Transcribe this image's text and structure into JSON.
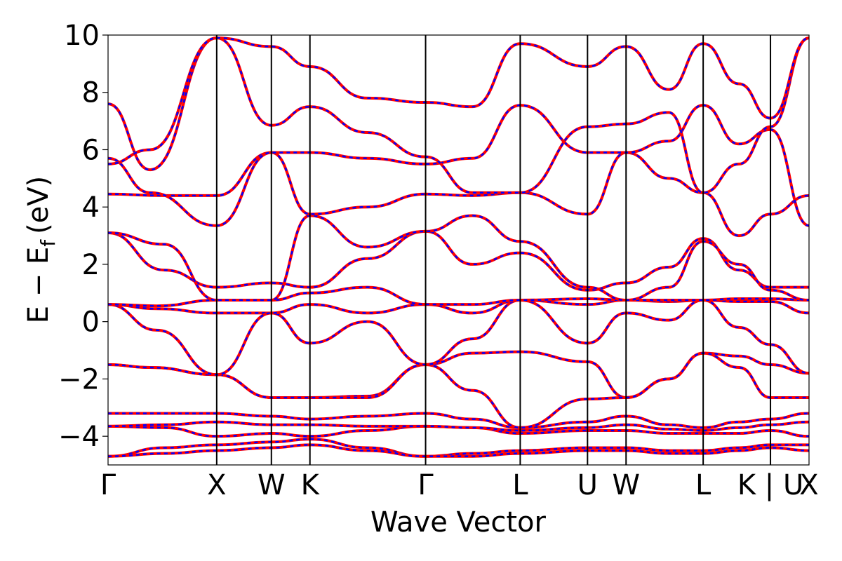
{
  "chart_data": {
    "type": "line",
    "xlabel": "Wave Vector",
    "ylabel": "E − E",
    "ylabel_subscript": "f",
    "ylabel_unit": "(eV)",
    "ylim": [
      -5,
      10
    ],
    "yticks": [
      {
        "value": 10,
        "label": "10"
      },
      {
        "value": 8,
        "label": "8"
      },
      {
        "value": 6,
        "label": "6"
      },
      {
        "value": 4,
        "label": "4"
      },
      {
        "value": 2,
        "label": "2"
      },
      {
        "value": 0,
        "label": "0"
      },
      {
        "value": -2,
        "label": "−2"
      },
      {
        "value": -4,
        "label": "−4"
      }
    ],
    "xlim": [
      0,
      1
    ],
    "high_symmetry_points": [
      {
        "label": "Γ",
        "pos": 0.0
      },
      {
        "label": "X",
        "pos": 0.155
      },
      {
        "label": "W",
        "pos": 0.233
      },
      {
        "label": "K",
        "pos": 0.288
      },
      {
        "label": "Γ",
        "pos": 0.453
      },
      {
        "label": "L",
        "pos": 0.588
      },
      {
        "label": "U",
        "pos": 0.684
      },
      {
        "label": "W",
        "pos": 0.739
      },
      {
        "label": "L",
        "pos": 0.849
      },
      {
        "label": "K | U",
        "pos": 0.945
      },
      {
        "label": "X",
        "pos": 1.0
      }
    ],
    "grid": false,
    "legend": "none",
    "series_colors": {
      "primary": "#ff0000",
      "overlay": "#0000ff"
    },
    "series": [
      {
        "values": [
          [
            0,
            -4.7
          ],
          [
            0.08,
            -4.4
          ],
          [
            0.155,
            -4.3
          ],
          [
            0.233,
            -4.2
          ],
          [
            0.288,
            -4.1
          ],
          [
            0.37,
            -4.4
          ],
          [
            0.453,
            -4.7
          ],
          [
            0.52,
            -4.6
          ],
          [
            0.588,
            -4.5
          ],
          [
            0.684,
            -4.4
          ],
          [
            0.739,
            -4.4
          ],
          [
            0.8,
            -4.5
          ],
          [
            0.849,
            -4.5
          ],
          [
            0.9,
            -4.4
          ],
          [
            0.945,
            -4.3
          ],
          [
            1.0,
            -4.3
          ]
        ]
      },
      {
        "values": [
          [
            0,
            -4.7
          ],
          [
            0.08,
            -4.6
          ],
          [
            0.155,
            -4.5
          ],
          [
            0.233,
            -4.4
          ],
          [
            0.288,
            -4.3
          ],
          [
            0.37,
            -4.5
          ],
          [
            0.453,
            -4.7
          ],
          [
            0.52,
            -4.7
          ],
          [
            0.588,
            -4.6
          ],
          [
            0.684,
            -4.5
          ],
          [
            0.739,
            -4.5
          ],
          [
            0.8,
            -4.6
          ],
          [
            0.849,
            -4.6
          ],
          [
            0.9,
            -4.5
          ],
          [
            0.945,
            -4.4
          ],
          [
            1.0,
            -4.5
          ]
        ]
      },
      {
        "values": [
          [
            0,
            -3.65
          ],
          [
            0.08,
            -3.7
          ],
          [
            0.155,
            -4.0
          ],
          [
            0.233,
            -3.9
          ],
          [
            0.288,
            -4.0
          ],
          [
            0.37,
            -3.8
          ],
          [
            0.453,
            -3.65
          ],
          [
            0.52,
            -3.7
          ],
          [
            0.588,
            -3.9
          ],
          [
            0.684,
            -3.8
          ],
          [
            0.739,
            -3.8
          ],
          [
            0.8,
            -3.9
          ],
          [
            0.849,
            -3.9
          ],
          [
            0.9,
            -3.9
          ],
          [
            0.945,
            -3.8
          ],
          [
            1.0,
            -4.0
          ]
        ]
      },
      {
        "values": [
          [
            0,
            -3.65
          ],
          [
            0.08,
            -3.6
          ],
          [
            0.155,
            -3.5
          ],
          [
            0.233,
            -3.6
          ],
          [
            0.288,
            -3.6
          ],
          [
            0.37,
            -3.65
          ],
          [
            0.453,
            -3.65
          ],
          [
            0.52,
            -3.7
          ],
          [
            0.588,
            -3.8
          ],
          [
            0.684,
            -3.7
          ],
          [
            0.739,
            -3.6
          ],
          [
            0.8,
            -3.75
          ],
          [
            0.849,
            -3.8
          ],
          [
            0.9,
            -3.7
          ],
          [
            0.945,
            -3.6
          ],
          [
            1.0,
            -3.5
          ]
        ]
      },
      {
        "values": [
          [
            0,
            -3.2
          ],
          [
            0.08,
            -3.2
          ],
          [
            0.155,
            -3.2
          ],
          [
            0.233,
            -3.3
          ],
          [
            0.288,
            -3.4
          ],
          [
            0.37,
            -3.3
          ],
          [
            0.453,
            -3.2
          ],
          [
            0.52,
            -3.4
          ],
          [
            0.588,
            -3.7
          ],
          [
            0.684,
            -3.5
          ],
          [
            0.739,
            -3.3
          ],
          [
            0.8,
            -3.6
          ],
          [
            0.849,
            -3.7
          ],
          [
            0.9,
            -3.5
          ],
          [
            0.945,
            -3.4
          ],
          [
            1.0,
            -3.2
          ]
        ]
      },
      {
        "values": [
          [
            0,
            -1.5
          ],
          [
            0.06,
            -1.6
          ],
          [
            0.155,
            -1.85
          ],
          [
            0.233,
            -2.65
          ],
          [
            0.288,
            -2.65
          ],
          [
            0.37,
            -2.6
          ],
          [
            0.453,
            -1.5
          ],
          [
            0.52,
            -1.1
          ],
          [
            0.588,
            -1.05
          ],
          [
            0.684,
            -1.4
          ],
          [
            0.739,
            -2.65
          ],
          [
            0.8,
            -2.0
          ],
          [
            0.849,
            -1.1
          ],
          [
            0.9,
            -1.2
          ],
          [
            0.945,
            -1.5
          ],
          [
            1.0,
            -1.8
          ]
        ]
      },
      {
        "values": [
          [
            0,
            -1.5
          ],
          [
            0.06,
            -1.6
          ],
          [
            0.155,
            -1.85
          ],
          [
            0.233,
            -2.65
          ],
          [
            0.288,
            -2.65
          ],
          [
            0.37,
            -2.65
          ],
          [
            0.453,
            -1.5
          ],
          [
            0.52,
            -2.4
          ],
          [
            0.588,
            -3.7
          ],
          [
            0.684,
            -2.7
          ],
          [
            0.739,
            -2.65
          ],
          [
            0.8,
            -2.0
          ],
          [
            0.849,
            -1.1
          ],
          [
            0.9,
            -1.6
          ],
          [
            0.945,
            -2.65
          ],
          [
            1.0,
            -2.65
          ]
        ]
      },
      {
        "values": [
          [
            0,
            0.6
          ],
          [
            0.07,
            0.45
          ],
          [
            0.155,
            0.3
          ],
          [
            0.233,
            0.3
          ],
          [
            0.288,
            -0.75
          ],
          [
            0.37,
            0.0
          ],
          [
            0.453,
            -1.5
          ],
          [
            0.52,
            -0.6
          ],
          [
            0.588,
            0.75
          ],
          [
            0.684,
            -0.75
          ],
          [
            0.739,
            0.3
          ],
          [
            0.8,
            0.05
          ],
          [
            0.849,
            0.75
          ],
          [
            0.9,
            -0.2
          ],
          [
            0.945,
            -0.8
          ],
          [
            1.0,
            -1.8
          ]
        ]
      },
      {
        "values": [
          [
            0,
            0.6
          ],
          [
            0.07,
            -0.3
          ],
          [
            0.155,
            -1.85
          ],
          [
            0.233,
            0.3
          ],
          [
            0.288,
            0.6
          ],
          [
            0.37,
            0.3
          ],
          [
            0.453,
            0.6
          ],
          [
            0.52,
            0.3
          ],
          [
            0.588,
            0.75
          ],
          [
            0.684,
            0.6
          ],
          [
            0.739,
            0.75
          ],
          [
            0.8,
            0.7
          ],
          [
            0.849,
            0.75
          ],
          [
            0.9,
            0.7
          ],
          [
            0.945,
            0.7
          ],
          [
            1.0,
            0.3
          ]
        ]
      },
      {
        "values": [
          [
            0,
            0.6
          ],
          [
            0.07,
            0.55
          ],
          [
            0.155,
            0.75
          ],
          [
            0.233,
            0.75
          ],
          [
            0.288,
            1.0
          ],
          [
            0.37,
            1.2
          ],
          [
            0.453,
            0.6
          ],
          [
            0.52,
            0.6
          ],
          [
            0.588,
            0.75
          ],
          [
            0.684,
            0.8
          ],
          [
            0.739,
            0.75
          ],
          [
            0.8,
            0.75
          ],
          [
            0.849,
            0.75
          ],
          [
            0.9,
            0.8
          ],
          [
            0.945,
            0.8
          ],
          [
            1.0,
            0.75
          ]
        ]
      },
      {
        "values": [
          [
            0,
            3.1
          ],
          [
            0.08,
            1.8
          ],
          [
            0.155,
            1.2
          ],
          [
            0.233,
            1.35
          ],
          [
            0.288,
            1.2
          ],
          [
            0.37,
            2.2
          ],
          [
            0.453,
            3.15
          ],
          [
            0.52,
            2.0
          ],
          [
            0.588,
            2.4
          ],
          [
            0.684,
            1.1
          ],
          [
            0.739,
            1.35
          ],
          [
            0.8,
            1.9
          ],
          [
            0.849,
            2.9
          ],
          [
            0.9,
            1.8
          ],
          [
            0.945,
            1.2
          ],
          [
            1.0,
            1.2
          ]
        ]
      },
      {
        "values": [
          [
            0,
            3.1
          ],
          [
            0.08,
            2.7
          ],
          [
            0.155,
            0.75
          ],
          [
            0.233,
            0.75
          ],
          [
            0.288,
            3.7
          ],
          [
            0.37,
            2.6
          ],
          [
            0.453,
            3.15
          ],
          [
            0.52,
            3.7
          ],
          [
            0.588,
            2.8
          ],
          [
            0.684,
            1.2
          ],
          [
            0.739,
            0.75
          ],
          [
            0.8,
            1.2
          ],
          [
            0.849,
            2.8
          ],
          [
            0.9,
            2.0
          ],
          [
            0.945,
            1.1
          ],
          [
            1.0,
            0.75
          ]
        ]
      },
      {
        "values": [
          [
            0,
            4.45
          ],
          [
            0.08,
            4.4
          ],
          [
            0.155,
            4.4
          ],
          [
            0.233,
            5.9
          ],
          [
            0.288,
            3.75
          ],
          [
            0.37,
            4.0
          ],
          [
            0.453,
            4.45
          ],
          [
            0.52,
            4.4
          ],
          [
            0.588,
            4.5
          ],
          [
            0.684,
            3.75
          ],
          [
            0.739,
            5.9
          ],
          [
            0.8,
            5.0
          ],
          [
            0.849,
            4.5
          ],
          [
            0.9,
            3.0
          ],
          [
            0.945,
            3.75
          ],
          [
            1.0,
            4.4
          ]
        ]
      },
      {
        "values": [
          [
            0,
            5.7
          ],
          [
            0.06,
            4.5
          ],
          [
            0.155,
            3.35
          ],
          [
            0.233,
            5.9
          ],
          [
            0.288,
            5.9
          ],
          [
            0.37,
            5.7
          ],
          [
            0.453,
            5.5
          ],
          [
            0.52,
            5.7
          ],
          [
            0.588,
            7.55
          ],
          [
            0.684,
            5.9
          ],
          [
            0.739,
            5.9
          ],
          [
            0.8,
            6.3
          ],
          [
            0.849,
            7.55
          ],
          [
            0.9,
            6.2
          ],
          [
            0.945,
            6.7
          ],
          [
            1.0,
            3.35
          ]
        ]
      },
      {
        "values": [
          [
            0,
            7.6
          ],
          [
            0.06,
            5.3
          ],
          [
            0.155,
            9.9
          ],
          [
            0.233,
            6.85
          ],
          [
            0.288,
            7.5
          ],
          [
            0.37,
            6.6
          ],
          [
            0.453,
            5.75
          ],
          [
            0.52,
            4.5
          ],
          [
            0.588,
            4.5
          ],
          [
            0.684,
            6.8
          ],
          [
            0.739,
            6.9
          ],
          [
            0.8,
            7.3
          ],
          [
            0.849,
            4.5
          ],
          [
            0.9,
            5.5
          ],
          [
            0.945,
            6.8
          ],
          [
            1.0,
            9.9
          ]
        ]
      },
      {
        "values": [
          [
            0,
            5.5
          ],
          [
            0.06,
            6.0
          ],
          [
            0.155,
            9.9
          ],
          [
            0.233,
            9.6
          ],
          [
            0.288,
            8.9
          ],
          [
            0.37,
            7.8
          ],
          [
            0.453,
            7.65
          ],
          [
            0.52,
            7.5
          ],
          [
            0.588,
            9.7
          ],
          [
            0.684,
            8.9
          ],
          [
            0.739,
            9.6
          ],
          [
            0.8,
            8.1
          ],
          [
            0.849,
            9.7
          ],
          [
            0.9,
            8.3
          ],
          [
            0.945,
            7.1
          ],
          [
            1.0,
            9.9
          ]
        ]
      }
    ]
  }
}
